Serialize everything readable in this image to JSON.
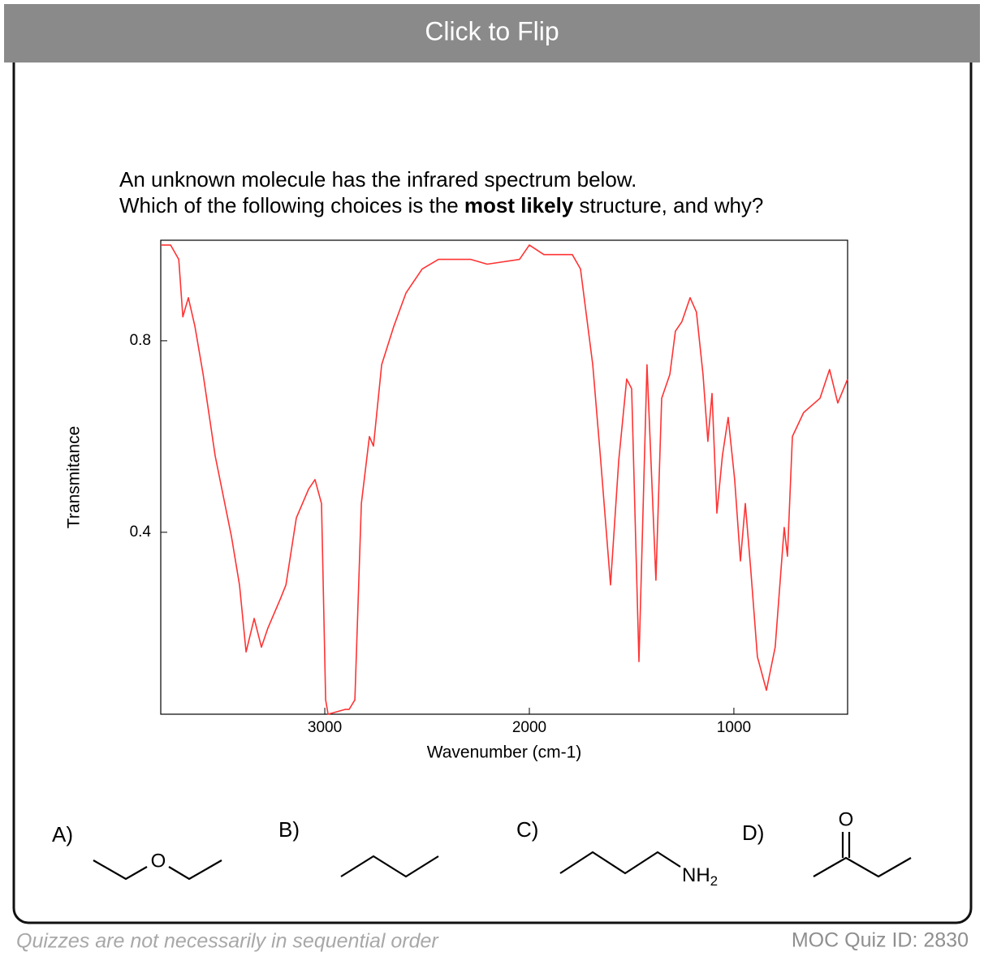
{
  "header": {
    "button": "Click to Flip"
  },
  "question": {
    "line1": "An unknown molecule has the infrared spectrum below.",
    "line2_before": "Which of the following choices is the ",
    "line2_bold": "most likely",
    "line2_after": " structure, and why?"
  },
  "chart_data": {
    "type": "line",
    "x_label": "Wavenumber (cm-1)",
    "y_label": "Transmitance",
    "x": [
      3802,
      3754,
      3714,
      3694,
      3667,
      3635,
      3595,
      3536,
      3456,
      3417,
      3385,
      3345,
      3310,
      3278,
      3218,
      3190,
      3139,
      3079,
      3048,
      3016,
      2996,
      2984,
      2901,
      2881,
      2853,
      2821,
      2782,
      2762,
      2722,
      2663,
      2603,
      2524,
      2444,
      2286,
      2206,
      2048,
      2000,
      1929,
      1790,
      1750,
      1690,
      1651,
      1603,
      1563,
      1524,
      1500,
      1464,
      1425,
      1381,
      1353,
      1313,
      1286,
      1254,
      1214,
      1183,
      1151,
      1127,
      1107,
      1083,
      1056,
      1028,
      996,
      968,
      944,
      917,
      885,
      841,
      798,
      754,
      738,
      714,
      659,
      579,
      532,
      492,
      444
    ],
    "series": [
      {
        "color": "#ff3333",
        "values": [
          1.0,
          1.0,
          0.97,
          0.85,
          0.89,
          0.83,
          0.73,
          0.56,
          0.39,
          0.29,
          0.15,
          0.22,
          0.16,
          0.2,
          0.26,
          0.29,
          0.43,
          0.49,
          0.51,
          0.46,
          0.05,
          0.02,
          0.03,
          0.03,
          0.05,
          0.46,
          0.6,
          0.58,
          0.75,
          0.83,
          0.9,
          0.95,
          0.97,
          0.97,
          0.96,
          0.97,
          1.0,
          0.98,
          0.98,
          0.95,
          0.75,
          0.55,
          0.29,
          0.55,
          0.72,
          0.7,
          0.13,
          0.75,
          0.3,
          0.68,
          0.73,
          0.82,
          0.84,
          0.89,
          0.86,
          0.73,
          0.59,
          0.69,
          0.44,
          0.56,
          0.64,
          0.51,
          0.34,
          0.46,
          0.32,
          0.14,
          0.07,
          0.16,
          0.41,
          0.35,
          0.6,
          0.65,
          0.68,
          0.74,
          0.67,
          0.72
        ]
      }
    ],
    "xlim": [
      3802,
      444
    ],
    "ylim": [
      0.02,
      1.01
    ],
    "xticks": [
      3000,
      2000,
      1000
    ],
    "yticks": [
      0.4,
      0.8
    ]
  },
  "choices": [
    {
      "label": "A)",
      "atom": "O"
    },
    {
      "label": "B)"
    },
    {
      "label": "C)",
      "atom": "NH",
      "subscript": "2"
    },
    {
      "label": "D)",
      "atom": "O"
    }
  ],
  "footer": {
    "note": "Quizzes are not necessarily in sequential order",
    "quiz_id": "MOC Quiz ID: 2830"
  }
}
